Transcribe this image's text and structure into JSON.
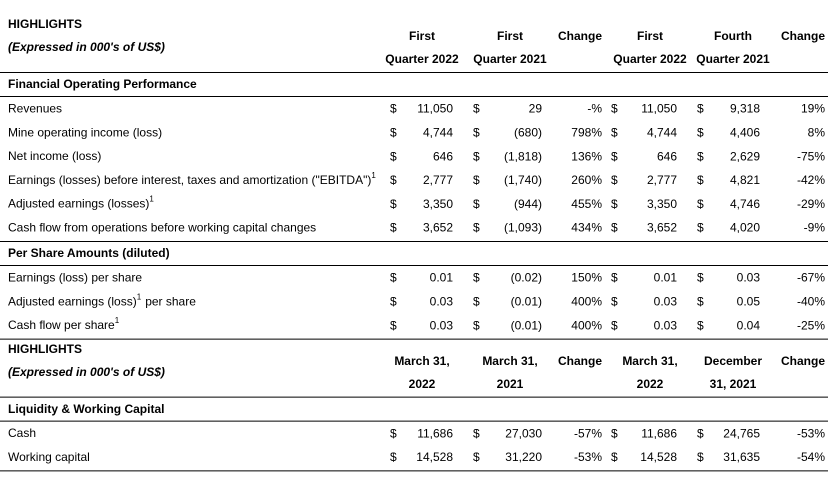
{
  "currency": "$",
  "blocks": [
    {
      "title": "HIGHLIGHTS",
      "subtitle": "(Expressed in 000's of US$)",
      "columns": [
        [
          "First",
          "Quarter 2022"
        ],
        [
          "First",
          "Quarter 2021"
        ],
        [
          "Change"
        ],
        [
          "First",
          "Quarter 2022"
        ],
        [
          "Fourth",
          "Quarter 2021"
        ],
        [
          "Change"
        ]
      ],
      "sections": [
        {
          "heading": "Financial Operating Performance",
          "rows": [
            {
              "label": "Revenues",
              "cells": [
                "11,050",
                "29",
                "-%",
                "11,050",
                "9,318",
                "19%"
              ]
            },
            {
              "label": "Mine operating income (loss)",
              "cells": [
                "4,744",
                "(680)",
                "798%",
                "4,744",
                "4,406",
                "8%"
              ]
            },
            {
              "label": "Net income (loss)",
              "cells": [
                "646",
                "(1,818)",
                "136%",
                "646",
                "2,629",
                "-75%"
              ]
            },
            {
              "label": "Earnings (losses) before interest, taxes and amortization (\"EBITDA\")",
              "note": "1",
              "cells": [
                "2,777",
                "(1,740)",
                "260%",
                "2,777",
                "4,821",
                "-42%"
              ]
            },
            {
              "label": "Adjusted earnings (losses)",
              "note": "1",
              "cells": [
                "3,350",
                "(944)",
                "455%",
                "3,350",
                "4,746",
                "-29%"
              ]
            },
            {
              "label": "Cash flow from operations before working capital changes",
              "cells": [
                "3,652",
                "(1,093)",
                "434%",
                "3,652",
                "4,020",
                "-9%"
              ]
            }
          ]
        },
        {
          "heading": "Per Share Amounts (diluted)",
          "rows": [
            {
              "label": "Earnings (loss) per share",
              "cells": [
                "0.01",
                "(0.02)",
                "150%",
                "0.01",
                "0.03",
                "-67%"
              ]
            },
            {
              "label": "Adjusted earnings (loss)",
              "note": "1",
              "rest": "per share",
              "cells": [
                "0.03",
                "(0.01)",
                "400%",
                "0.03",
                "0.05",
                "-40%"
              ]
            },
            {
              "label": "Cash flow per share",
              "note": "1",
              "cells": [
                "0.03",
                "(0.01)",
                "400%",
                "0.03",
                "0.04",
                "-25%"
              ]
            }
          ]
        }
      ]
    },
    {
      "title": "HIGHLIGHTS",
      "subtitle": "(Expressed in 000's of US$)",
      "columns": [
        [
          "March 31,",
          "2022"
        ],
        [
          "March 31,",
          "2021"
        ],
        [
          "Change"
        ],
        [
          "March 31,",
          "2022"
        ],
        [
          "December",
          "31, 2021"
        ],
        [
          "Change"
        ]
      ],
      "sections": [
        {
          "heading": "Liquidity & Working Capital",
          "rows": [
            {
              "label": "Cash",
              "cells": [
                "11,686",
                "27,030",
                "-57%",
                "11,686",
                "24,765",
                "-53%"
              ]
            },
            {
              "label": "Working capital",
              "cells": [
                "14,528",
                "31,220",
                "-53%",
                "14,528",
                "31,635",
                "-54%"
              ]
            }
          ]
        }
      ]
    }
  ]
}
